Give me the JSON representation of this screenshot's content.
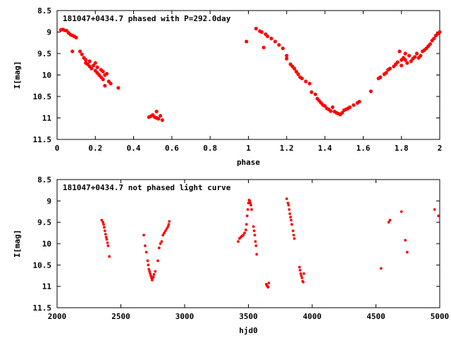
{
  "chart_data": [
    {
      "type": "scatter",
      "title": "181047+0434.7 phased with P=292.0day",
      "xlabel": "phase",
      "ylabel": "I[mag]",
      "xlim": [
        0,
        2
      ],
      "ylim": [
        8.5,
        11.5
      ],
      "y_inverted": true,
      "grid": false,
      "marker": "filled-circle",
      "color": "#ff0000",
      "x_ticks": [
        "0",
        "0.2",
        "0.4",
        "0.6",
        "0.8",
        "1",
        "1.2",
        "1.4",
        "1.6",
        "1.8",
        "2"
      ],
      "y_ticks": [
        "8.5",
        "9",
        "9.5",
        "10",
        "10.5",
        "11",
        "11.5"
      ],
      "series": [
        {
          "points": [
            [
              0.02,
              8.95
            ],
            [
              0.03,
              8.94
            ],
            [
              0.04,
              8.96
            ],
            [
              0.05,
              8.97
            ],
            [
              0.06,
              9.02
            ],
            [
              0.07,
              9.06
            ],
            [
              0.08,
              9.08
            ],
            [
              0.09,
              9.1
            ],
            [
              0.1,
              9.13
            ],
            [
              0.08,
              9.45
            ],
            [
              0.12,
              9.45
            ],
            [
              0.13,
              9.52
            ],
            [
              0.14,
              9.6
            ],
            [
              0.15,
              9.65
            ],
            [
              0.15,
              9.72
            ],
            [
              0.16,
              9.75
            ],
            [
              0.17,
              9.8
            ],
            [
              0.17,
              9.68
            ],
            [
              0.18,
              9.85
            ],
            [
              0.19,
              9.78
            ],
            [
              0.2,
              9.9
            ],
            [
              0.2,
              9.72
            ],
            [
              0.21,
              9.95
            ],
            [
              0.21,
              9.82
            ],
            [
              0.22,
              10.0
            ],
            [
              0.23,
              9.88
            ],
            [
              0.23,
              10.05
            ],
            [
              0.24,
              9.92
            ],
            [
              0.24,
              10.1
            ],
            [
              0.25,
              10.0
            ],
            [
              0.25,
              10.25
            ],
            [
              0.26,
              9.97
            ],
            [
              0.27,
              10.15
            ],
            [
              0.28,
              10.2
            ],
            [
              0.32,
              10.3
            ],
            [
              0.48,
              10.98
            ],
            [
              0.49,
              10.96
            ],
            [
              0.5,
              10.93
            ],
            [
              0.51,
              10.98
            ],
            [
              0.52,
              11.0
            ],
            [
              0.52,
              10.85
            ],
            [
              0.53,
              11.02
            ],
            [
              0.54,
              10.95
            ],
            [
              0.55,
              11.05
            ],
            [
              0.99,
              9.22
            ],
            [
              1.04,
              8.92
            ],
            [
              1.06,
              8.98
            ],
            [
              1.07,
              9.0
            ],
            [
              1.08,
              9.36
            ],
            [
              1.09,
              9.05
            ],
            [
              1.1,
              9.1
            ],
            [
              1.12,
              9.15
            ],
            [
              1.14,
              9.22
            ],
            [
              1.16,
              9.3
            ],
            [
              1.18,
              9.38
            ],
            [
              1.2,
              9.55
            ],
            [
              1.2,
              9.62
            ],
            [
              1.22,
              9.75
            ],
            [
              1.23,
              9.8
            ],
            [
              1.24,
              9.85
            ],
            [
              1.25,
              9.92
            ],
            [
              1.26,
              9.98
            ],
            [
              1.27,
              10.05
            ],
            [
              1.28,
              10.08
            ],
            [
              1.3,
              10.15
            ],
            [
              1.32,
              10.2
            ],
            [
              1.33,
              10.4
            ],
            [
              1.35,
              10.45
            ],
            [
              1.36,
              10.55
            ],
            [
              1.37,
              10.6
            ],
            [
              1.38,
              10.65
            ],
            [
              1.39,
              10.7
            ],
            [
              1.4,
              10.72
            ],
            [
              1.41,
              10.78
            ],
            [
              1.42,
              10.8
            ],
            [
              1.43,
              10.84
            ],
            [
              1.44,
              10.75
            ],
            [
              1.45,
              10.85
            ],
            [
              1.46,
              10.88
            ],
            [
              1.47,
              10.9
            ],
            [
              1.48,
              10.92
            ],
            [
              1.49,
              10.88
            ],
            [
              1.5,
              10.82
            ],
            [
              1.51,
              10.8
            ],
            [
              1.52,
              10.78
            ],
            [
              1.53,
              10.75
            ],
            [
              1.55,
              10.7
            ],
            [
              1.57,
              10.65
            ],
            [
              1.58,
              10.62
            ],
            [
              1.64,
              10.38
            ],
            [
              1.68,
              10.08
            ],
            [
              1.69,
              10.05
            ],
            [
              1.71,
              9.98
            ],
            [
              1.72,
              9.95
            ],
            [
              1.73,
              9.88
            ],
            [
              1.74,
              9.85
            ],
            [
              1.76,
              9.8
            ],
            [
              1.77,
              9.75
            ],
            [
              1.78,
              9.7
            ],
            [
              1.79,
              9.45
            ],
            [
              1.8,
              9.65
            ],
            [
              1.8,
              9.78
            ],
            [
              1.81,
              9.6
            ],
            [
              1.82,
              9.65
            ],
            [
              1.82,
              9.5
            ],
            [
              1.83,
              9.72
            ],
            [
              1.84,
              9.55
            ],
            [
              1.85,
              9.68
            ],
            [
              1.86,
              9.62
            ],
            [
              1.87,
              9.58
            ],
            [
              1.88,
              9.5
            ],
            [
              1.89,
              9.6
            ],
            [
              1.9,
              9.55
            ],
            [
              1.91,
              9.45
            ],
            [
              1.92,
              9.42
            ],
            [
              1.93,
              9.38
            ],
            [
              1.94,
              9.33
            ],
            [
              1.95,
              9.28
            ],
            [
              1.96,
              9.2
            ],
            [
              1.97,
              9.15
            ],
            [
              1.98,
              9.08
            ],
            [
              1.99,
              9.04
            ],
            [
              2.0,
              9.0
            ]
          ]
        }
      ]
    },
    {
      "type": "scatter",
      "title": "181047+0434.7 not phased light curve",
      "xlabel": "hjd0",
      "ylabel": "I[mag]",
      "xlim": [
        2000,
        5000
      ],
      "ylim": [
        8.5,
        11.5
      ],
      "y_inverted": true,
      "grid": false,
      "marker": "filled-circle",
      "color": "#ff0000",
      "x_ticks": [
        "2000",
        "2500",
        "3000",
        "3500",
        "4000",
        "4500",
        "5000"
      ],
      "y_ticks": [
        "8.5",
        "9",
        "9.5",
        "10",
        "10.5",
        "11",
        "11.5"
      ],
      "series": [
        {
          "points": [
            [
              2350,
              9.45
            ],
            [
              2360,
              9.5
            ],
            [
              2365,
              9.55
            ],
            [
              2370,
              9.62
            ],
            [
              2375,
              9.7
            ],
            [
              2380,
              9.78
            ],
            [
              2385,
              9.85
            ],
            [
              2390,
              9.9
            ],
            [
              2395,
              9.98
            ],
            [
              2400,
              10.05
            ],
            [
              2410,
              10.3
            ],
            [
              2680,
              9.8
            ],
            [
              2690,
              10.05
            ],
            [
              2700,
              10.2
            ],
            [
              2710,
              10.4
            ],
            [
              2715,
              10.5
            ],
            [
              2720,
              10.6
            ],
            [
              2725,
              10.65
            ],
            [
              2730,
              10.7
            ],
            [
              2735,
              10.75
            ],
            [
              2740,
              10.8
            ],
            [
              2745,
              10.85
            ],
            [
              2750,
              10.8
            ],
            [
              2755,
              10.78
            ],
            [
              2760,
              10.72
            ],
            [
              2770,
              10.65
            ],
            [
              2790,
              10.4
            ],
            [
              2800,
              10.1
            ],
            [
              2810,
              10.0
            ],
            [
              2820,
              9.95
            ],
            [
              2830,
              9.8
            ],
            [
              2840,
              9.75
            ],
            [
              2850,
              9.7
            ],
            [
              2860,
              9.65
            ],
            [
              2870,
              9.6
            ],
            [
              2875,
              9.55
            ],
            [
              2880,
              9.48
            ],
            [
              3420,
              9.95
            ],
            [
              3430,
              9.88
            ],
            [
              3440,
              9.85
            ],
            [
              3450,
              9.82
            ],
            [
              3460,
              9.8
            ],
            [
              3470,
              9.75
            ],
            [
              3480,
              9.68
            ],
            [
              3485,
              9.55
            ],
            [
              3490,
              9.35
            ],
            [
              3495,
              9.2
            ],
            [
              3500,
              9.05
            ],
            [
              3505,
              8.98
            ],
            [
              3510,
              9.0
            ],
            [
              3515,
              9.05
            ],
            [
              3520,
              9.1
            ],
            [
              3525,
              9.2
            ],
            [
              3540,
              9.6
            ],
            [
              3545,
              9.7
            ],
            [
              3550,
              9.8
            ],
            [
              3555,
              9.95
            ],
            [
              3560,
              10.05
            ],
            [
              3565,
              10.25
            ],
            [
              3640,
              10.95
            ],
            [
              3645,
              10.98
            ],
            [
              3650,
              11.0
            ],
            [
              3655,
              11.02
            ],
            [
              3660,
              10.92
            ],
            [
              3800,
              8.95
            ],
            [
              3810,
              9.05
            ],
            [
              3815,
              9.1
            ],
            [
              3820,
              9.2
            ],
            [
              3825,
              9.3
            ],
            [
              3830,
              9.38
            ],
            [
              3835,
              9.45
            ],
            [
              3840,
              9.55
            ],
            [
              3850,
              9.7
            ],
            [
              3855,
              9.8
            ],
            [
              3860,
              9.88
            ],
            [
              3900,
              10.55
            ],
            [
              3905,
              10.62
            ],
            [
              3910,
              10.7
            ],
            [
              3915,
              10.75
            ],
            [
              3920,
              10.8
            ],
            [
              3925,
              10.88
            ],
            [
              3930,
              10.9
            ],
            [
              3935,
              10.7
            ],
            [
              4540,
              10.58
            ],
            [
              4600,
              9.5
            ],
            [
              4610,
              9.45
            ],
            [
              4700,
              9.25
            ],
            [
              4730,
              9.92
            ],
            [
              4745,
              10.2
            ],
            [
              4960,
              9.2
            ],
            [
              4990,
              9.35
            ]
          ]
        }
      ]
    }
  ]
}
